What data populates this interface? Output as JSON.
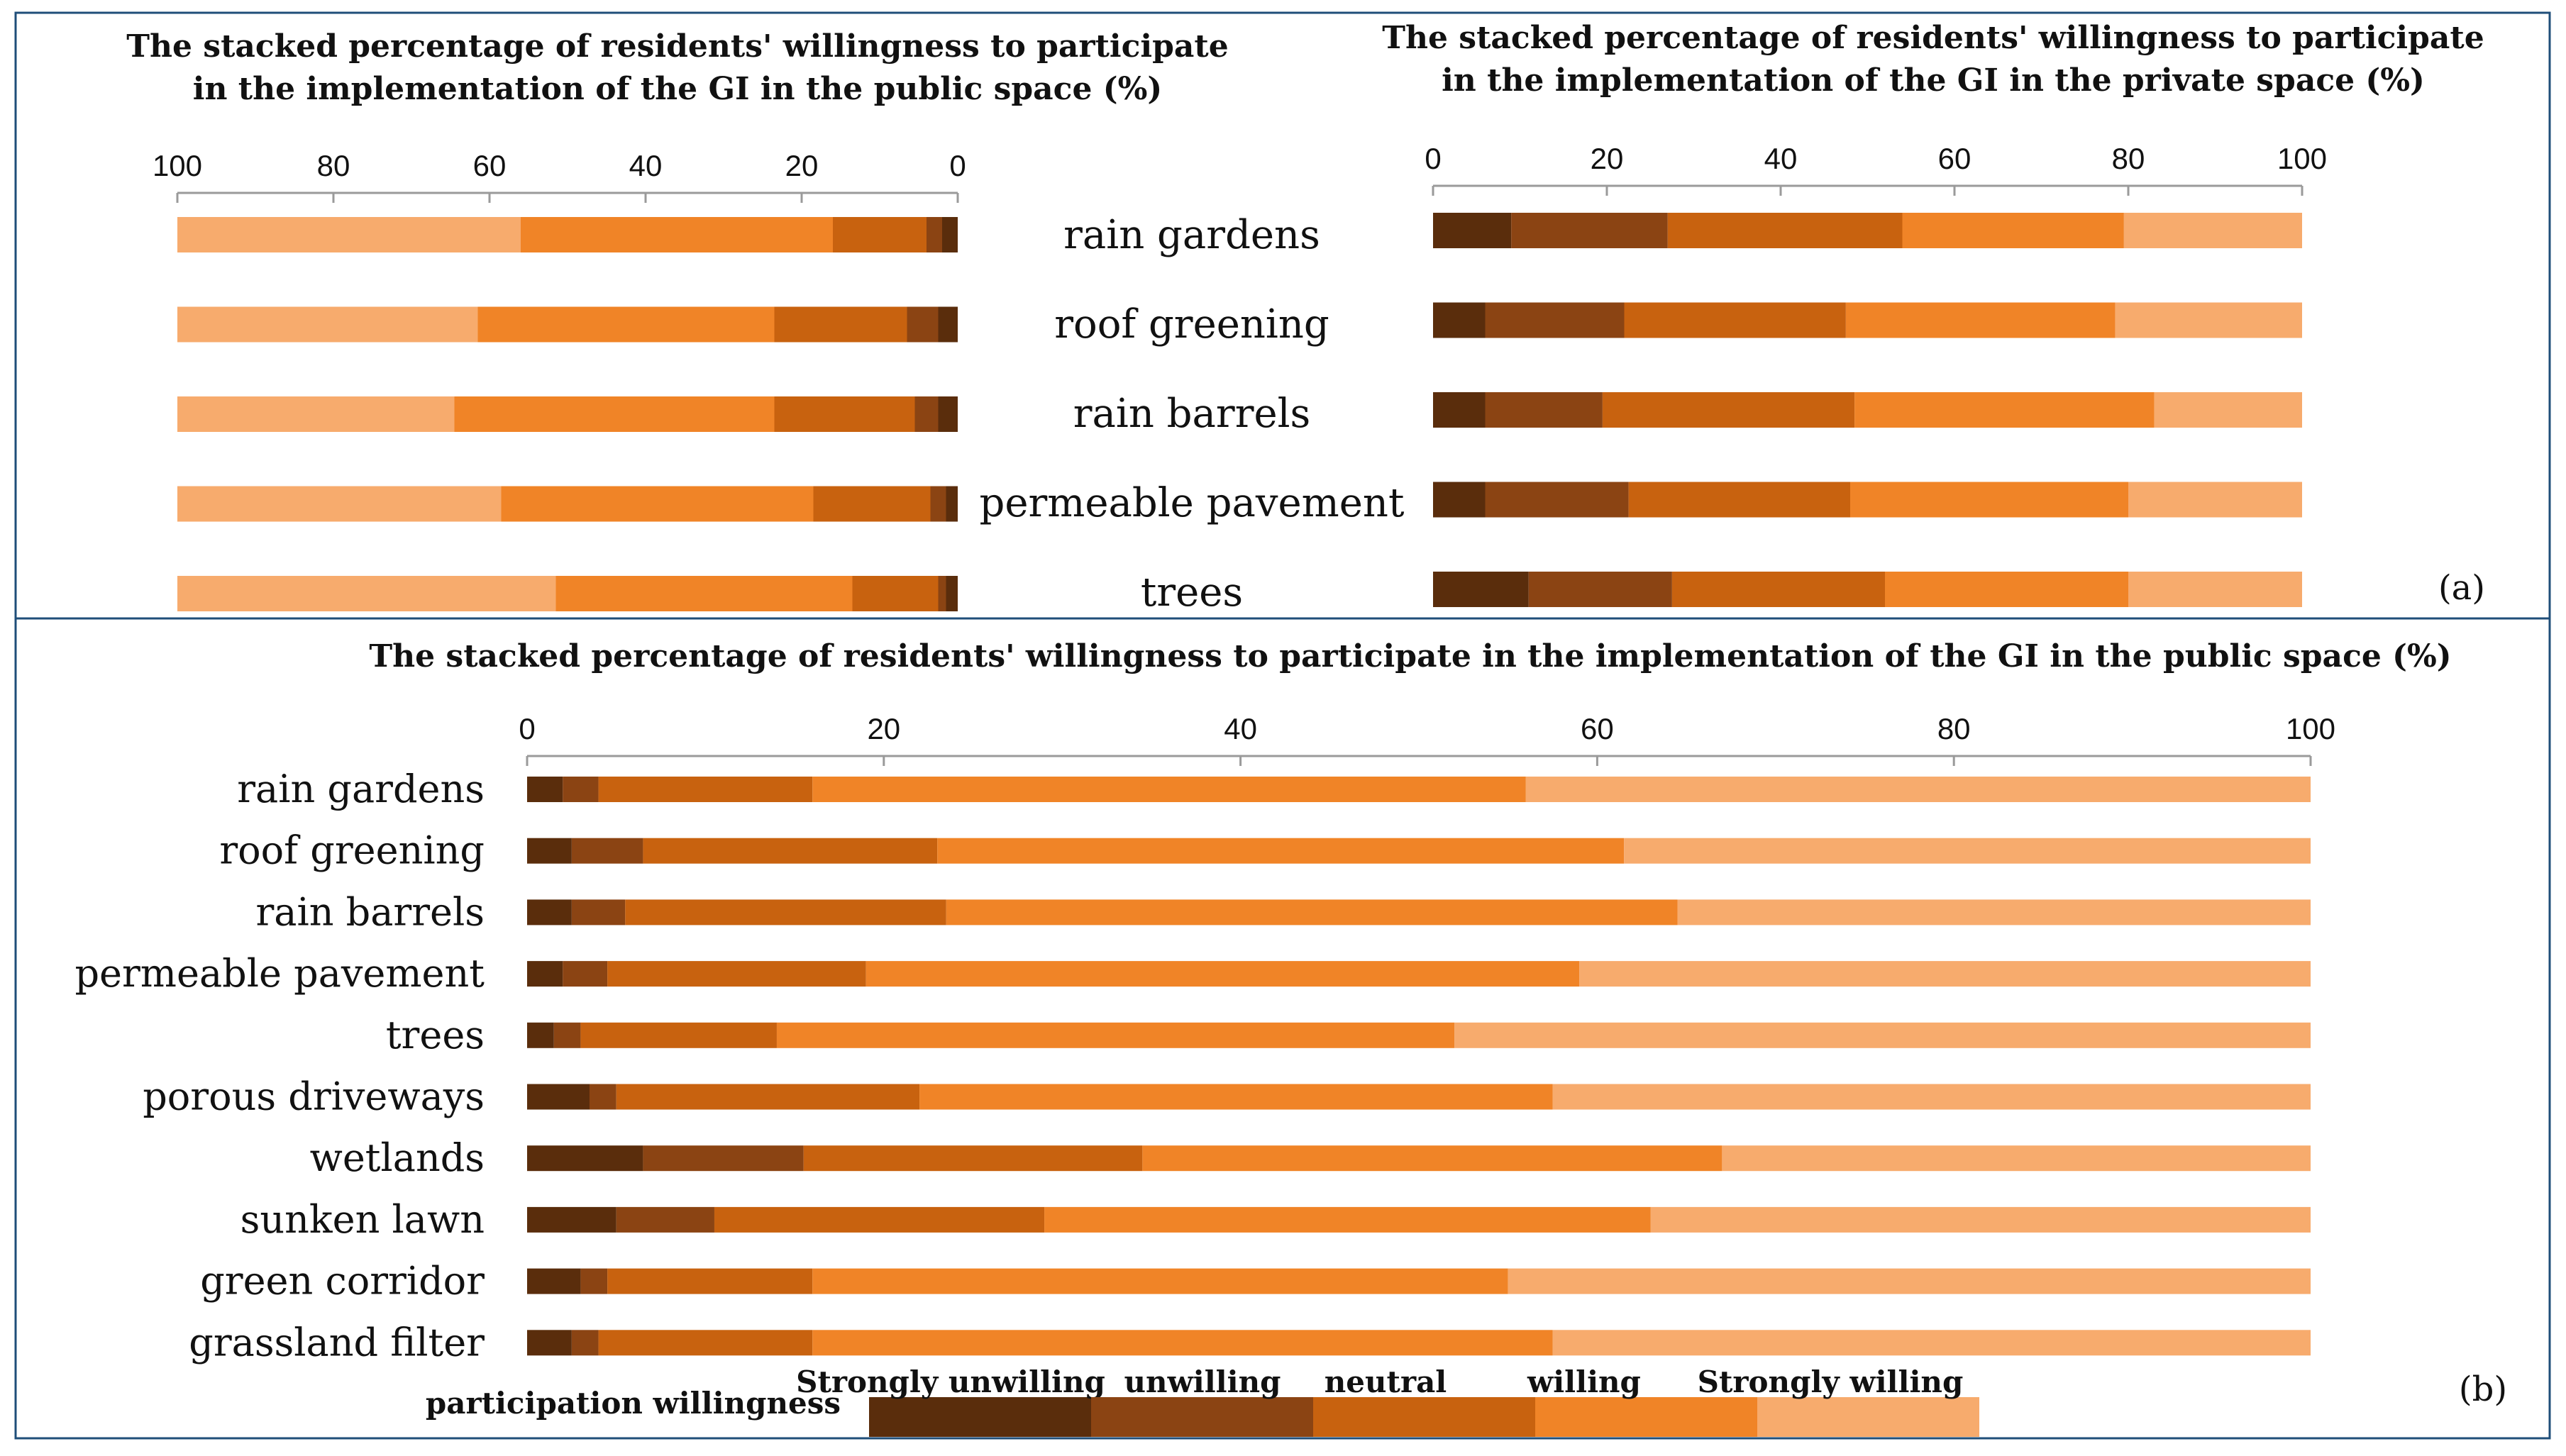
{
  "colors": {
    "strongly_unwilling": "#5a2d0c",
    "unwilling": "#8b4413",
    "neutral": "#c8620f",
    "willing": "#f08427",
    "strongly_willing": "#f7ab6d",
    "axis": "#9a9a9a",
    "border": "#1f4e79"
  },
  "chart_data": [
    {
      "id": "a-left",
      "type": "bar",
      "stacked": "percent",
      "orientation": "horizontal",
      "direction": "reversed",
      "title_line1": "The stacked percentage of residents' willingness  to participate",
      "title_line2": "in the implementation of the GI in the public space (%)",
      "xlim": [
        100,
        0
      ],
      "ticks": [
        "100",
        "80",
        "60",
        "40",
        "20",
        "0"
      ],
      "categories": [
        "rain gardens",
        "roof greening",
        "rain barrels",
        "permeable pavement",
        "trees"
      ],
      "series": [
        {
          "name": "Strongly unwilling",
          "values": [
            2,
            2.5,
            2.5,
            1.5,
            1.5
          ]
        },
        {
          "name": "unwilling",
          "values": [
            2,
            4,
            3,
            2,
            1
          ]
        },
        {
          "name": "neutral",
          "values": [
            12,
            17,
            18,
            15,
            11
          ]
        },
        {
          "name": "willing",
          "values": [
            40,
            38,
            41,
            40,
            38
          ]
        },
        {
          "name": "Strongly willing",
          "values": [
            44,
            38.5,
            35.5,
            41.5,
            48.5
          ]
        }
      ]
    },
    {
      "id": "a-right",
      "type": "bar",
      "stacked": "percent",
      "orientation": "horizontal",
      "title_line1": "The stacked percentage of residents' willingness  to participate",
      "title_line2": "in the implementation of  the GI in the private space (%)",
      "xlim": [
        0,
        100
      ],
      "ticks": [
        "0",
        "20",
        "40",
        "60",
        "80",
        "100"
      ],
      "categories": [
        "rain gardens",
        "roof greening",
        "rain barrels",
        "permeable pavement",
        "trees"
      ],
      "series": [
        {
          "name": "Strongly unwilling",
          "values": [
            9,
            6,
            6,
            6,
            11
          ]
        },
        {
          "name": "unwilling",
          "values": [
            18,
            16,
            13.5,
            16.5,
            16.5
          ]
        },
        {
          "name": "neutral",
          "values": [
            27,
            25.5,
            29,
            25.5,
            24.5
          ]
        },
        {
          "name": "willing",
          "values": [
            25.5,
            31,
            34.5,
            32,
            28
          ]
        },
        {
          "name": "Strongly willing",
          "values": [
            20.5,
            21.5,
            17,
            20,
            20
          ]
        }
      ]
    },
    {
      "id": "b",
      "type": "bar",
      "stacked": "percent",
      "orientation": "horizontal",
      "title": "The stacked percentage of residents' willingness  to participate in the implementation of  the GI in the public space (%)",
      "xlim": [
        0,
        100
      ],
      "ticks": [
        "0",
        "20",
        "40",
        "60",
        "80",
        "100"
      ],
      "categories": [
        "rain gardens",
        "roof greening",
        "rain barrels",
        "permeable pavement",
        "trees",
        "porous driveways",
        "wetlands",
        "sunken lawn",
        "green corridor",
        "grassland filter"
      ],
      "series": [
        {
          "name": "Strongly unwilling",
          "values": [
            2,
            2.5,
            2.5,
            2,
            1.5,
            3.5,
            6.5,
            5,
            3,
            2.5
          ]
        },
        {
          "name": "unwilling",
          "values": [
            2,
            4,
            3,
            2.5,
            1.5,
            1.5,
            9,
            5.5,
            1.5,
            1.5
          ]
        },
        {
          "name": "neutral",
          "values": [
            12,
            16.5,
            18,
            14.5,
            11,
            17,
            19,
            18.5,
            11.5,
            12
          ]
        },
        {
          "name": "willing",
          "values": [
            40,
            38.5,
            41,
            40,
            38,
            35.5,
            32.5,
            34,
            39,
            41.5
          ]
        },
        {
          "name": "Strongly willing",
          "values": [
            44,
            38.5,
            35.5,
            41,
            48,
            42.5,
            33,
            37,
            45,
            42.5
          ]
        }
      ]
    }
  ],
  "panel_labels": {
    "a": "(a)",
    "b": "(b)"
  },
  "legend": {
    "title": "participation willingness",
    "items": [
      "Strongly unwilling",
      "unwilling",
      "neutral",
      "willing",
      "Strongly willing"
    ]
  }
}
